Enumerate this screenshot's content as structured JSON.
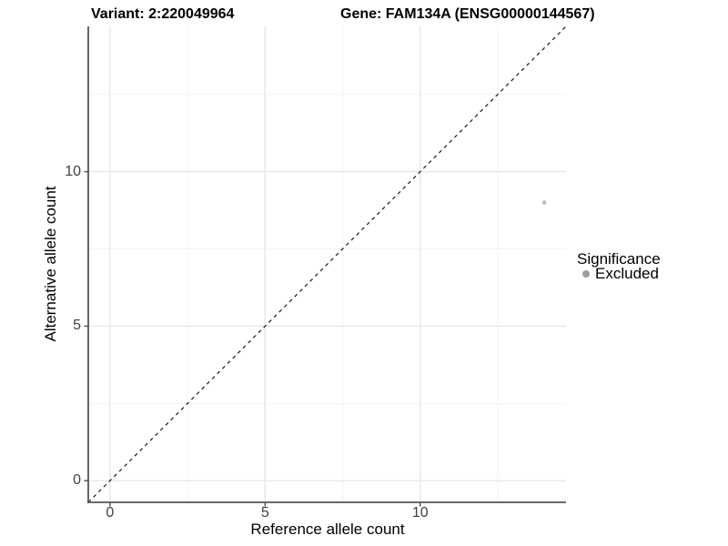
{
  "figure": {
    "title_variant": "Variant: 2:220049964",
    "title_gene": "Gene: FAM134A (ENSG00000144567)"
  },
  "chart_data": {
    "type": "scatter",
    "title": "Variant: 2:220049964   Gene: FAM134A (ENSG00000144567)",
    "xlabel": "Reference allele count",
    "ylabel": "Alternative allele count",
    "xlim": [
      -0.7,
      14.7
    ],
    "ylim": [
      -0.7,
      14.7
    ],
    "x_ticks": [
      0,
      5,
      10
    ],
    "y_ticks": [
      0,
      5,
      10
    ],
    "x_minor_gridlines": [
      2.5,
      7.5,
      12.5
    ],
    "y_minor_gridlines": [
      2.5,
      7.5,
      12.5
    ],
    "grid": "on",
    "points": [
      {
        "x": 14,
        "y": 9,
        "significance": "Excluded"
      }
    ],
    "point_color": "#bdbdbd",
    "point_radius": 2.3,
    "reference_line": {
      "kind": "identity",
      "slope": 1,
      "intercept": 0,
      "style": "dashed",
      "color": "#1a1a1a"
    },
    "legend": {
      "title": "Significance",
      "position": "right",
      "items": [
        {
          "label": "Excluded",
          "color": "#9e9e9e"
        }
      ]
    },
    "colors": {
      "axis_line": "#555555",
      "tick_mark": "#555555",
      "tick_text": "#404040",
      "grid_major": "#e6e6e6",
      "grid_minor": "#f2f2f2",
      "background": "#ffffff"
    }
  }
}
